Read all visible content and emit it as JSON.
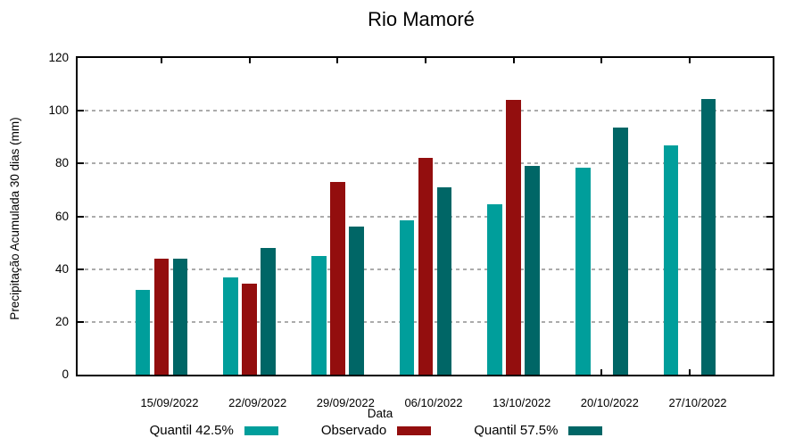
{
  "title": "Rio Mamoré",
  "chart_data": {
    "type": "bar",
    "title": "Rio Mamoré",
    "xlabel": "Data",
    "ylabel": "Precipitação Acumulada 30 dias (mm)",
    "ylim": [
      0,
      120
    ],
    "yticks": [
      0,
      20,
      40,
      60,
      80,
      100,
      120
    ],
    "grid": {
      "horizontal": true,
      "style": "dashed",
      "values": [
        20,
        40,
        60,
        80,
        100
      ]
    },
    "legend_position": "bottom",
    "categories": [
      "15/09/2022",
      "22/09/2022",
      "29/09/2022",
      "06/10/2022",
      "13/10/2022",
      "20/10/2022",
      "27/10/2022"
    ],
    "series": [
      {
        "name": "Quantil 42.5%",
        "color": "#009E9B",
        "values": [
          32,
          37,
          45,
          58.5,
          64.5,
          78.5,
          87
        ]
      },
      {
        "name": "Observado",
        "color": "#930E0E",
        "values": [
          44,
          34.5,
          73,
          82,
          104,
          null,
          null
        ]
      },
      {
        "name": "Quantil 57.5%",
        "color": "#006666",
        "values": [
          44,
          48,
          56,
          71,
          79,
          93.5,
          104.5
        ]
      }
    ],
    "colors": {
      "axis": "#000000",
      "grid": "#ababab",
      "background": "#ffffff"
    }
  }
}
